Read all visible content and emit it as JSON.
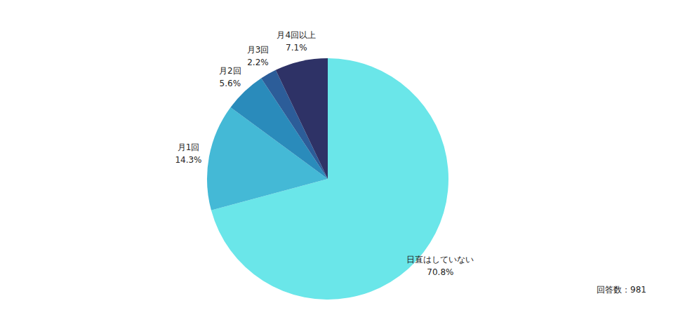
{
  "chart_data": {
    "type": "pie",
    "categories": [
      "日直はしていない",
      "月1回",
      "月2回",
      "月3回",
      "月4回以上"
    ],
    "values": [
      70.8,
      14.3,
      5.6,
      2.2,
      7.1
    ],
    "value_labels": [
      "70.8%",
      "14.3%",
      "5.6%",
      "2.2%",
      "7.1%"
    ],
    "colors": [
      "#6ae6e9",
      "#44b9d6",
      "#2a8bbb",
      "#2c5d99",
      "#2e3266"
    ],
    "data_labels": true,
    "annotation": "回答数：981"
  }
}
